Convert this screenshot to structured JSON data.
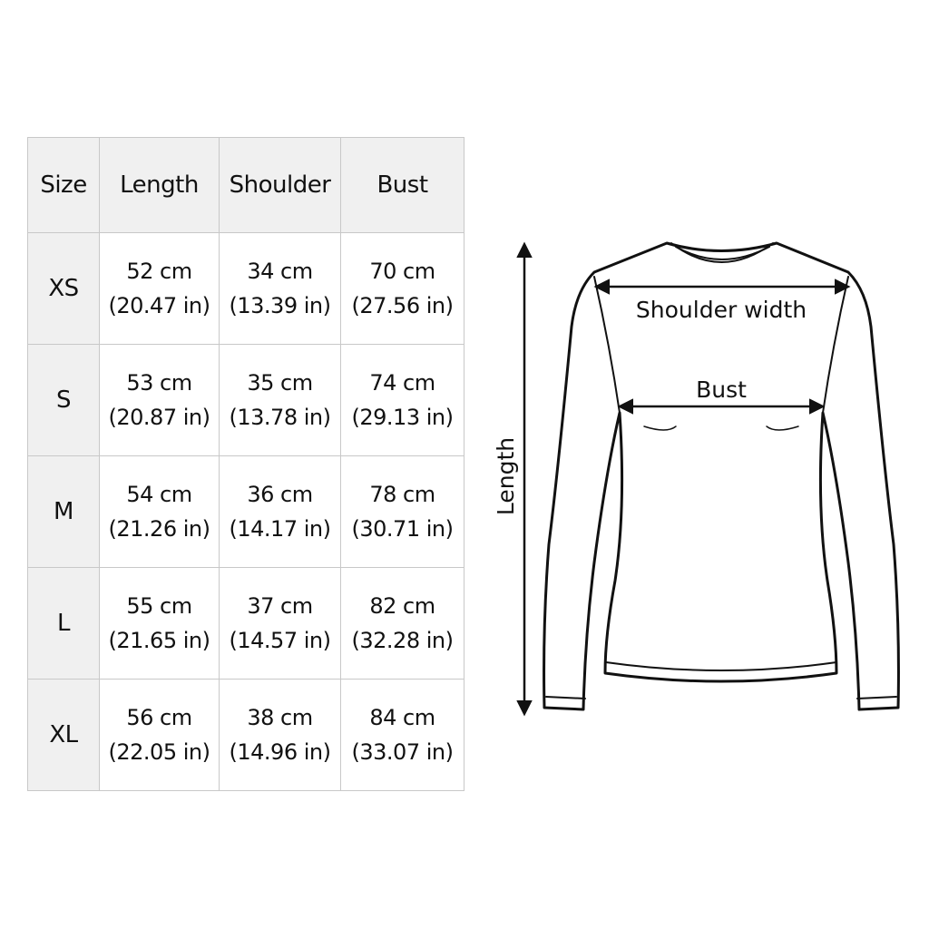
{
  "table": {
    "headers": [
      "Size",
      "Length",
      "Shoulder",
      "Bust"
    ],
    "rows": [
      {
        "size": "XS",
        "length_cm": "52 cm",
        "length_in": "(20.47 in)",
        "shoulder_cm": "34 cm",
        "shoulder_in": "(13.39 in)",
        "bust_cm": "70 cm",
        "bust_in": "(27.56 in)"
      },
      {
        "size": "S",
        "length_cm": "53 cm",
        "length_in": "(20.87 in)",
        "shoulder_cm": "35 cm",
        "shoulder_in": "(13.78 in)",
        "bust_cm": "74 cm",
        "bust_in": "(29.13 in)"
      },
      {
        "size": "M",
        "length_cm": "54 cm",
        "length_in": "(21.26 in)",
        "shoulder_cm": "36 cm",
        "shoulder_in": "(14.17 in)",
        "bust_cm": "78 cm",
        "bust_in": "(30.71 in)"
      },
      {
        "size": "L",
        "length_cm": "55 cm",
        "length_in": "(21.65 in)",
        "shoulder_cm": "37 cm",
        "shoulder_in": "(14.57 in)",
        "bust_cm": "82 cm",
        "bust_in": "(32.28 in)"
      },
      {
        "size": "XL",
        "length_cm": "56 cm",
        "length_in": "(22.05 in)",
        "shoulder_cm": "38 cm",
        "shoulder_in": "(14.96 in)",
        "bust_cm": "84 cm",
        "bust_in": "(33.07 in)"
      }
    ]
  },
  "diagram": {
    "shoulder_label": "Shoulder width",
    "bust_label": "Bust",
    "length_label": "Length"
  }
}
